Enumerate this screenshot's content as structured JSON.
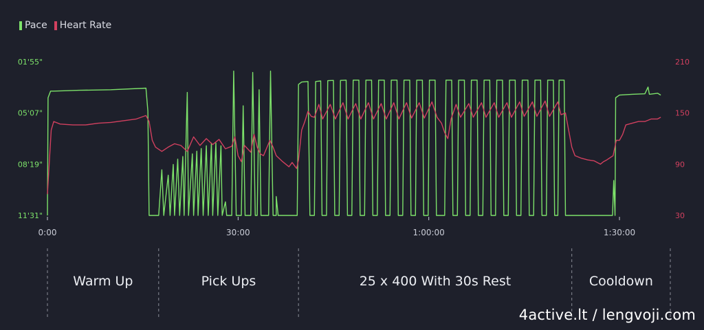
{
  "legend": {
    "pace_label": "Pace",
    "heart_rate_label": "Heart Rate"
  },
  "colors": {
    "background": "#1e202b",
    "pace": "#7de26a",
    "heart_rate": "#d2405f",
    "axis_text": "#c9ccd6",
    "grid": "#3a3d4a",
    "segment_divider": "#8a8d97"
  },
  "watermark": "4active.lt / lengvoji.com",
  "chart_data": {
    "type": "line",
    "x_unit": "minutes",
    "x_ticks": [
      {
        "value": 0,
        "label": "0:00"
      },
      {
        "value": 30,
        "label": "30:00"
      },
      {
        "value": 60,
        "label": "1:00:00"
      },
      {
        "value": 90,
        "label": "1:30:00"
      }
    ],
    "xlim": [
      0,
      98
    ],
    "left_axis": {
      "series": "Pace",
      "inverted": true,
      "ticks": [
        {
          "value": 115,
          "label": "01'55\""
        },
        {
          "value": 307,
          "label": "05'07\""
        },
        {
          "value": 499,
          "label": "08'19\""
        },
        {
          "value": 691,
          "label": "11'31\""
        }
      ],
      "ylim_seconds_per_km": [
        115,
        691
      ]
    },
    "right_axis": {
      "series": "Heart Rate",
      "ticks": [
        {
          "value": 210,
          "label": "210"
        },
        {
          "value": 150,
          "label": "150"
        },
        {
          "value": 90,
          "label": "90"
        },
        {
          "value": 30,
          "label": "30"
        }
      ],
      "ylim_bpm": [
        30,
        210
      ]
    },
    "segments": [
      {
        "label": "Warm Up",
        "start": 0,
        "end": 17.5
      },
      {
        "label": "Pick Ups",
        "start": 17.5,
        "end": 39.5
      },
      {
        "label": "25 x 400 With 30s Rest",
        "start": 39.5,
        "end": 82.5
      },
      {
        "label": "Cooldown",
        "start": 82.5,
        "end": 98
      }
    ],
    "series": [
      {
        "name": "Pace",
        "axis": "left",
        "points": [
          [
            0,
            691
          ],
          [
            0.1,
            250
          ],
          [
            0.5,
            225
          ],
          [
            1,
            225
          ],
          [
            5,
            222
          ],
          [
            10,
            220
          ],
          [
            15.5,
            214
          ],
          [
            15.8,
            300
          ],
          [
            16,
            691
          ],
          [
            17.5,
            691
          ],
          [
            18,
            520
          ],
          [
            18.3,
            691
          ],
          [
            19,
            540
          ],
          [
            19.3,
            691
          ],
          [
            19.8,
            500
          ],
          [
            20,
            691
          ],
          [
            20.5,
            480
          ],
          [
            20.8,
            691
          ],
          [
            21.3,
            470
          ],
          [
            21.5,
            691
          ],
          [
            22,
            230
          ],
          [
            22.2,
            691
          ],
          [
            22.8,
            460
          ],
          [
            23,
            691
          ],
          [
            23.5,
            450
          ],
          [
            23.7,
            691
          ],
          [
            24.2,
            440
          ],
          [
            24.5,
            691
          ],
          [
            25,
            430
          ],
          [
            25.3,
            691
          ],
          [
            25.8,
            420
          ],
          [
            26,
            691
          ],
          [
            26.5,
            420
          ],
          [
            26.8,
            691
          ],
          [
            27.3,
            430
          ],
          [
            27.5,
            691
          ],
          [
            28,
            640
          ],
          [
            28.2,
            691
          ],
          [
            29,
            691
          ],
          [
            29.3,
            150
          ],
          [
            29.7,
            691
          ],
          [
            30.5,
            691
          ],
          [
            30.8,
            280
          ],
          [
            31.1,
            691
          ],
          [
            32,
            691
          ],
          [
            32.3,
            155
          ],
          [
            32.7,
            691
          ],
          [
            33,
            691
          ],
          [
            33.3,
            220
          ],
          [
            33.6,
            691
          ],
          [
            34.8,
            691
          ],
          [
            35.1,
            150
          ],
          [
            35.5,
            691
          ],
          [
            36,
            691
          ],
          [
            36,
            620
          ],
          [
            36.3,
            691
          ],
          [
            39.3,
            691
          ],
          [
            39.5,
            200
          ],
          [
            40,
            191
          ],
          [
            41,
            189
          ],
          [
            41.3,
            691
          ],
          [
            42,
            691
          ],
          [
            42.2,
            189
          ],
          [
            43,
            187
          ],
          [
            43.2,
            691
          ],
          [
            43.9,
            691
          ],
          [
            44.1,
            186
          ],
          [
            45,
            185
          ],
          [
            45.2,
            691
          ],
          [
            45.9,
            691
          ],
          [
            46.1,
            185
          ],
          [
            47,
            184
          ],
          [
            47.2,
            691
          ],
          [
            47.9,
            691
          ],
          [
            48.1,
            184
          ],
          [
            49,
            184
          ],
          [
            49.2,
            691
          ],
          [
            49.9,
            691
          ],
          [
            50.1,
            184
          ],
          [
            51,
            184
          ],
          [
            51.2,
            691
          ],
          [
            51.9,
            691
          ],
          [
            52.1,
            184
          ],
          [
            53,
            184
          ],
          [
            53.2,
            691
          ],
          [
            53.9,
            691
          ],
          [
            54.1,
            184
          ],
          [
            55,
            184
          ],
          [
            55.2,
            691
          ],
          [
            55.9,
            691
          ],
          [
            56.1,
            184
          ],
          [
            57,
            184
          ],
          [
            57.2,
            691
          ],
          [
            57.9,
            691
          ],
          [
            58.1,
            184
          ],
          [
            59,
            184
          ],
          [
            59.2,
            691
          ],
          [
            59.9,
            691
          ],
          [
            60.1,
            184
          ],
          [
            61,
            184
          ],
          [
            61.2,
            691
          ],
          [
            62.5,
            691
          ],
          [
            62.7,
            184
          ],
          [
            63.6,
            184
          ],
          [
            63.8,
            691
          ],
          [
            64.5,
            691
          ],
          [
            64.7,
            184
          ],
          [
            65.6,
            184
          ],
          [
            65.8,
            691
          ],
          [
            66.5,
            691
          ],
          [
            66.7,
            184
          ],
          [
            67.6,
            184
          ],
          [
            67.8,
            691
          ],
          [
            68.5,
            691
          ],
          [
            68.7,
            184
          ],
          [
            69.6,
            184
          ],
          [
            69.8,
            691
          ],
          [
            70.5,
            691
          ],
          [
            70.7,
            184
          ],
          [
            71.6,
            184
          ],
          [
            71.8,
            691
          ],
          [
            72.5,
            691
          ],
          [
            72.7,
            184
          ],
          [
            73.6,
            184
          ],
          [
            73.8,
            691
          ],
          [
            74.5,
            691
          ],
          [
            74.7,
            184
          ],
          [
            75.6,
            184
          ],
          [
            75.8,
            691
          ],
          [
            76.5,
            691
          ],
          [
            76.7,
            184
          ],
          [
            77.6,
            184
          ],
          [
            77.8,
            691
          ],
          [
            78.5,
            691
          ],
          [
            78.7,
            184
          ],
          [
            79.6,
            184
          ],
          [
            79.8,
            691
          ],
          [
            80.3,
            691
          ],
          [
            80.5,
            184
          ],
          [
            81.3,
            184
          ],
          [
            81.5,
            691
          ],
          [
            88.9,
            691
          ],
          [
            89.1,
            560
          ],
          [
            89.3,
            691
          ],
          [
            89.4,
            250
          ],
          [
            90,
            240
          ],
          [
            92,
            237
          ],
          [
            94,
            235
          ],
          [
            94.5,
            210
          ],
          [
            94.7,
            237
          ],
          [
            96,
            233
          ],
          [
            96.5,
            240
          ]
        ]
      },
      {
        "name": "Heart Rate",
        "axis": "right",
        "points": [
          [
            0,
            55
          ],
          [
            0.2,
            80
          ],
          [
            0.6,
            130
          ],
          [
            1,
            140
          ],
          [
            2,
            137
          ],
          [
            4,
            136
          ],
          [
            6,
            136
          ],
          [
            8,
            138
          ],
          [
            10,
            139
          ],
          [
            12,
            141
          ],
          [
            14,
            143
          ],
          [
            15.5,
            147
          ],
          [
            16,
            140
          ],
          [
            16.5,
            118
          ],
          [
            17,
            110
          ],
          [
            18,
            105
          ],
          [
            19,
            110
          ],
          [
            20,
            114
          ],
          [
            21,
            112
          ],
          [
            22,
            105
          ],
          [
            23,
            122
          ],
          [
            24,
            112
          ],
          [
            25,
            120
          ],
          [
            26,
            113
          ],
          [
            27,
            119
          ],
          [
            28,
            108
          ],
          [
            29,
            111
          ],
          [
            29.5,
            122
          ],
          [
            30,
            100
          ],
          [
            30.5,
            93
          ],
          [
            31,
            112
          ],
          [
            32,
            104
          ],
          [
            32.5,
            125
          ],
          [
            33,
            110
          ],
          [
            33.5,
            102
          ],
          [
            34,
            100
          ],
          [
            35,
            118
          ],
          [
            35.5,
            110
          ],
          [
            36,
            100
          ],
          [
            37,
            93
          ],
          [
            38,
            87
          ],
          [
            38.5,
            92
          ],
          [
            39.2,
            85
          ],
          [
            39.5,
            95
          ],
          [
            40,
            130
          ],
          [
            40.5,
            140
          ],
          [
            41,
            152
          ],
          [
            41.5,
            146
          ],
          [
            42,
            145
          ],
          [
            42.7,
            160
          ],
          [
            43.3,
            143
          ],
          [
            44.5,
            160
          ],
          [
            45.3,
            143
          ],
          [
            46.5,
            162
          ],
          [
            47.3,
            143
          ],
          [
            48.5,
            161
          ],
          [
            49.3,
            143
          ],
          [
            50.5,
            162
          ],
          [
            51.3,
            143
          ],
          [
            52.5,
            161
          ],
          [
            53.3,
            143
          ],
          [
            54.5,
            162
          ],
          [
            55.3,
            143
          ],
          [
            56.5,
            162
          ],
          [
            57.3,
            144
          ],
          [
            58.5,
            162
          ],
          [
            59.3,
            144
          ],
          [
            60.5,
            163
          ],
          [
            61.3,
            145
          ],
          [
            62,
            138
          ],
          [
            62.5,
            127
          ],
          [
            63,
            120
          ],
          [
            63.5,
            143
          ],
          [
            64.3,
            160
          ],
          [
            65,
            145
          ],
          [
            66.3,
            161
          ],
          [
            67,
            145
          ],
          [
            68.3,
            162
          ],
          [
            69,
            145
          ],
          [
            70.3,
            162
          ],
          [
            71,
            145
          ],
          [
            72.3,
            162
          ],
          [
            73,
            145
          ],
          [
            74.3,
            163
          ],
          [
            75,
            146
          ],
          [
            76.3,
            163
          ],
          [
            77,
            146
          ],
          [
            78.3,
            164
          ],
          [
            79,
            146
          ],
          [
            80.3,
            163
          ],
          [
            80.8,
            148
          ],
          [
            81.5,
            150
          ],
          [
            82,
            130
          ],
          [
            82.5,
            110
          ],
          [
            83,
            100
          ],
          [
            84,
            97
          ],
          [
            85,
            95
          ],
          [
            86,
            94
          ],
          [
            87,
            90
          ],
          [
            87.5,
            93
          ],
          [
            88,
            95
          ],
          [
            89,
            100
          ],
          [
            89.5,
            118
          ],
          [
            90,
            118
          ],
          [
            90.5,
            125
          ],
          [
            91,
            136
          ],
          [
            92,
            138
          ],
          [
            93,
            140
          ],
          [
            94,
            140
          ],
          [
            95,
            143
          ],
          [
            96,
            143
          ],
          [
            96.5,
            145
          ]
        ]
      }
    ]
  }
}
